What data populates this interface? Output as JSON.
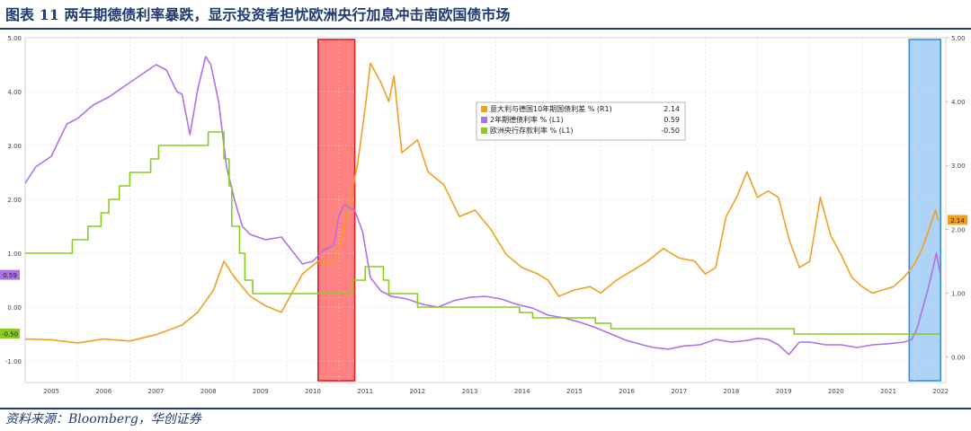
{
  "title": "图表 11  两年期德债利率暴跌，显示投资者担忧欧洲央行加息冲击南欧国债市场",
  "source": "资料来源：Bloomberg，华创证券",
  "colors": {
    "brand": "#1f3a6e",
    "spread": "#f0a020",
    "bund2y": "#b070e8",
    "ecb": "#88cc22",
    "red_band": "#ff6b6b",
    "blue_band": "#9fcdf5"
  },
  "chart_data": {
    "type": "line",
    "x_ticks": [
      "2005",
      "2006",
      "2007",
      "2008",
      "2009",
      "2010",
      "2011",
      "2012",
      "2013",
      "2014",
      "2015",
      "2016",
      "2017",
      "2018",
      "2019",
      "2020",
      "2021",
      "2022"
    ],
    "y_left": {
      "ticks": [
        "5.00",
        "4.00",
        "3.00",
        "2.00",
        "1.00",
        "0.00",
        "-1.00"
      ],
      "range": [
        -1.4,
        5.0
      ]
    },
    "y_right": {
      "ticks": [
        "5.00",
        "4.00",
        "3.00",
        "2.00",
        "1.00",
        "0.00"
      ],
      "range": [
        -0.4,
        5.0
      ]
    },
    "highlight_periods": [
      {
        "from": 2010.6,
        "to": 2011.3,
        "color": "red"
      },
      {
        "from": 2021.9,
        "to": 2022.5,
        "color": "blue"
      }
    ],
    "series": [
      {
        "name": "意大利与德国10年期国债利差 % (R1)",
        "last": "2.14",
        "axis": "right",
        "points": [
          [
            2005.0,
            0.28
          ],
          [
            2005.5,
            0.27
          ],
          [
            2006.0,
            0.22
          ],
          [
            2006.5,
            0.28
          ],
          [
            2007.0,
            0.25
          ],
          [
            2007.5,
            0.35
          ],
          [
            2008.0,
            0.5
          ],
          [
            2008.3,
            0.7
          ],
          [
            2008.6,
            1.05
          ],
          [
            2008.8,
            1.5
          ],
          [
            2009.0,
            1.25
          ],
          [
            2009.3,
            0.95
          ],
          [
            2009.6,
            0.8
          ],
          [
            2009.9,
            0.7
          ],
          [
            2010.1,
            1.0
          ],
          [
            2010.3,
            1.3
          ],
          [
            2010.6,
            1.5
          ],
          [
            2010.9,
            1.45
          ],
          [
            2011.0,
            1.7
          ],
          [
            2011.2,
            2.4
          ],
          [
            2011.35,
            3.0
          ],
          [
            2011.5,
            3.9
          ],
          [
            2011.6,
            4.6
          ],
          [
            2011.8,
            4.3
          ],
          [
            2011.95,
            4.0
          ],
          [
            2012.05,
            4.4
          ],
          [
            2012.2,
            3.2
          ],
          [
            2012.5,
            3.4
          ],
          [
            2012.7,
            2.9
          ],
          [
            2013.0,
            2.7
          ],
          [
            2013.3,
            2.2
          ],
          [
            2013.6,
            2.3
          ],
          [
            2013.9,
            2.0
          ],
          [
            2014.2,
            1.6
          ],
          [
            2014.5,
            1.4
          ],
          [
            2014.8,
            1.3
          ],
          [
            2015.0,
            1.2
          ],
          [
            2015.2,
            0.95
          ],
          [
            2015.5,
            1.05
          ],
          [
            2015.8,
            1.1
          ],
          [
            2016.0,
            1.0
          ],
          [
            2016.3,
            1.2
          ],
          [
            2016.6,
            1.35
          ],
          [
            2016.9,
            1.5
          ],
          [
            2017.2,
            1.7
          ],
          [
            2017.5,
            1.55
          ],
          [
            2017.8,
            1.5
          ],
          [
            2018.0,
            1.3
          ],
          [
            2018.2,
            1.4
          ],
          [
            2018.4,
            2.2
          ],
          [
            2018.6,
            2.5
          ],
          [
            2018.8,
            2.9
          ],
          [
            2019.0,
            2.5
          ],
          [
            2019.2,
            2.6
          ],
          [
            2019.4,
            2.5
          ],
          [
            2019.6,
            1.85
          ],
          [
            2019.8,
            1.4
          ],
          [
            2020.0,
            1.5
          ],
          [
            2020.2,
            2.5
          ],
          [
            2020.4,
            1.9
          ],
          [
            2020.6,
            1.6
          ],
          [
            2020.8,
            1.25
          ],
          [
            2021.0,
            1.1
          ],
          [
            2021.2,
            1.0
          ],
          [
            2021.4,
            1.05
          ],
          [
            2021.6,
            1.1
          ],
          [
            2021.8,
            1.25
          ],
          [
            2022.0,
            1.45
          ],
          [
            2022.15,
            1.7
          ],
          [
            2022.3,
            2.05
          ],
          [
            2022.4,
            2.3
          ],
          [
            2022.45,
            2.14
          ]
        ]
      },
      {
        "name": "2年期德债利率 % (L1)",
        "last": "0.59",
        "axis": "left",
        "points": [
          [
            2005.0,
            2.3
          ],
          [
            2005.2,
            2.6
          ],
          [
            2005.5,
            2.8
          ],
          [
            2005.8,
            3.4
          ],
          [
            2006.0,
            3.5
          ],
          [
            2006.3,
            3.75
          ],
          [
            2006.6,
            3.9
          ],
          [
            2006.9,
            4.1
          ],
          [
            2007.2,
            4.3
          ],
          [
            2007.5,
            4.5
          ],
          [
            2007.7,
            4.4
          ],
          [
            2007.9,
            4.0
          ],
          [
            2008.0,
            3.95
          ],
          [
            2008.15,
            3.2
          ],
          [
            2008.3,
            4.05
          ],
          [
            2008.45,
            4.65
          ],
          [
            2008.55,
            4.5
          ],
          [
            2008.7,
            3.8
          ],
          [
            2008.85,
            2.6
          ],
          [
            2009.0,
            2.0
          ],
          [
            2009.15,
            1.5
          ],
          [
            2009.3,
            1.35
          ],
          [
            2009.6,
            1.25
          ],
          [
            2009.9,
            1.3
          ],
          [
            2010.1,
            1.05
          ],
          [
            2010.3,
            0.8
          ],
          [
            2010.5,
            0.85
          ],
          [
            2010.7,
            1.05
          ],
          [
            2010.9,
            1.15
          ],
          [
            2011.0,
            1.7
          ],
          [
            2011.1,
            1.9
          ],
          [
            2011.3,
            1.8
          ],
          [
            2011.45,
            1.4
          ],
          [
            2011.6,
            0.55
          ],
          [
            2011.8,
            0.3
          ],
          [
            2012.0,
            0.2
          ],
          [
            2012.3,
            0.15
          ],
          [
            2012.6,
            0.05
          ],
          [
            2012.9,
            0.0
          ],
          [
            2013.2,
            0.12
          ],
          [
            2013.5,
            0.18
          ],
          [
            2013.8,
            0.2
          ],
          [
            2014.1,
            0.15
          ],
          [
            2014.4,
            0.05
          ],
          [
            2014.7,
            -0.02
          ],
          [
            2015.0,
            -0.15
          ],
          [
            2015.3,
            -0.2
          ],
          [
            2015.6,
            -0.28
          ],
          [
            2015.9,
            -0.38
          ],
          [
            2016.2,
            -0.5
          ],
          [
            2016.5,
            -0.62
          ],
          [
            2016.8,
            -0.7
          ],
          [
            2017.0,
            -0.75
          ],
          [
            2017.3,
            -0.78
          ],
          [
            2017.6,
            -0.72
          ],
          [
            2017.9,
            -0.7
          ],
          [
            2018.2,
            -0.6
          ],
          [
            2018.5,
            -0.65
          ],
          [
            2018.8,
            -0.62
          ],
          [
            2019.0,
            -0.58
          ],
          [
            2019.2,
            -0.6
          ],
          [
            2019.4,
            -0.7
          ],
          [
            2019.6,
            -0.88
          ],
          [
            2019.8,
            -0.65
          ],
          [
            2020.0,
            -0.65
          ],
          [
            2020.3,
            -0.7
          ],
          [
            2020.6,
            -0.7
          ],
          [
            2020.9,
            -0.75
          ],
          [
            2021.2,
            -0.7
          ],
          [
            2021.5,
            -0.68
          ],
          [
            2021.8,
            -0.65
          ],
          [
            2021.95,
            -0.6
          ],
          [
            2022.05,
            -0.4
          ],
          [
            2022.15,
            -0.05
          ],
          [
            2022.25,
            0.3
          ],
          [
            2022.35,
            0.7
          ],
          [
            2022.42,
            1.0
          ],
          [
            2022.5,
            0.59
          ]
        ]
      },
      {
        "name": "欧洲央行存款利率 % (L1)",
        "last": "-0.50",
        "axis": "left",
        "step": true,
        "points": [
          [
            2005.0,
            1.0
          ],
          [
            2005.9,
            1.25
          ],
          [
            2006.2,
            1.5
          ],
          [
            2006.45,
            1.75
          ],
          [
            2006.6,
            2.0
          ],
          [
            2006.8,
            2.25
          ],
          [
            2007.0,
            2.5
          ],
          [
            2007.4,
            2.75
          ],
          [
            2007.55,
            3.0
          ],
          [
            2008.5,
            3.25
          ],
          [
            2008.8,
            2.75
          ],
          [
            2008.9,
            2.25
          ],
          [
            2008.95,
            1.5
          ],
          [
            2009.1,
            1.0
          ],
          [
            2009.2,
            0.5
          ],
          [
            2009.35,
            0.25
          ],
          [
            2011.25,
            0.5
          ],
          [
            2011.5,
            0.75
          ],
          [
            2011.85,
            0.5
          ],
          [
            2011.95,
            0.25
          ],
          [
            2012.5,
            0.0
          ],
          [
            2014.45,
            -0.1
          ],
          [
            2014.7,
            -0.2
          ],
          [
            2015.9,
            -0.3
          ],
          [
            2016.2,
            -0.4
          ],
          [
            2019.7,
            -0.5
          ],
          [
            2022.5,
            -0.5
          ]
        ]
      }
    ]
  }
}
